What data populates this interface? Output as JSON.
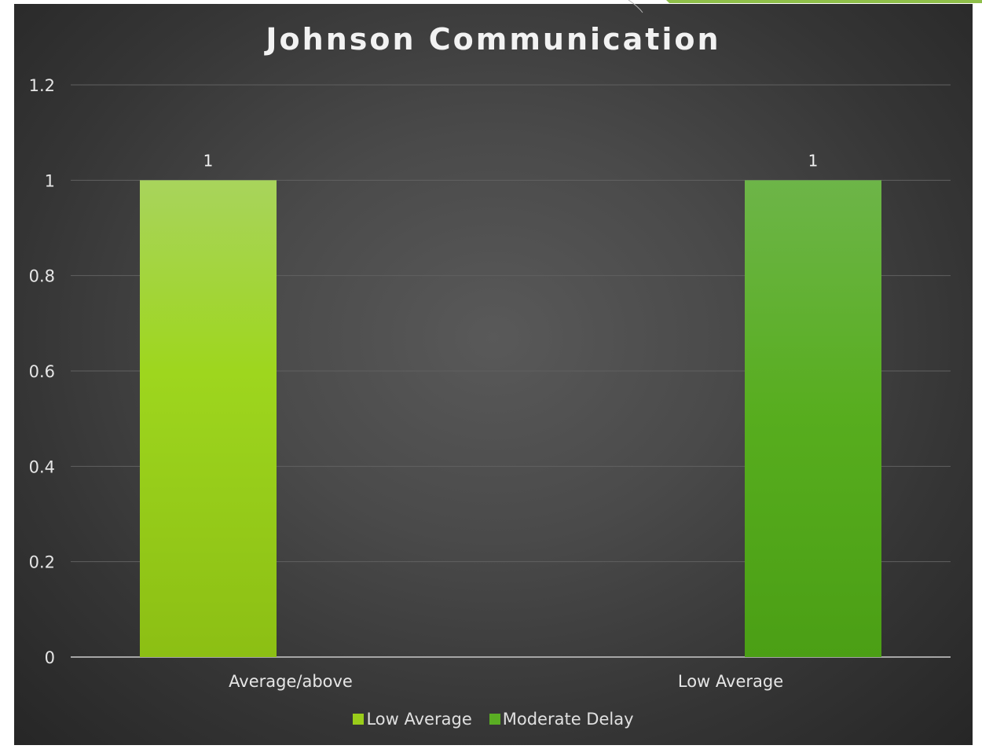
{
  "chart_data": {
    "type": "bar",
    "title": "Johnson Communication",
    "categories": [
      "Average/above",
      "Low Average"
    ],
    "series": [
      {
        "name": "Low Average",
        "values": [
          1,
          null
        ],
        "color": "#9ACD1A"
      },
      {
        "name": "Moderate Delay",
        "values": [
          null,
          1
        ],
        "color": "#5AAE23"
      }
    ],
    "data_labels": [
      "1",
      "1"
    ],
    "ylim": [
      0,
      1.2
    ],
    "yticks": [
      0,
      0.2,
      0.4,
      0.6,
      0.8,
      1,
      1.2
    ],
    "ytick_labels": [
      "0",
      "0.2",
      "0.4",
      "0.6",
      "0.8",
      "1",
      "1.2"
    ],
    "grid": true,
    "legend_position": "bottom",
    "background": "dark"
  }
}
